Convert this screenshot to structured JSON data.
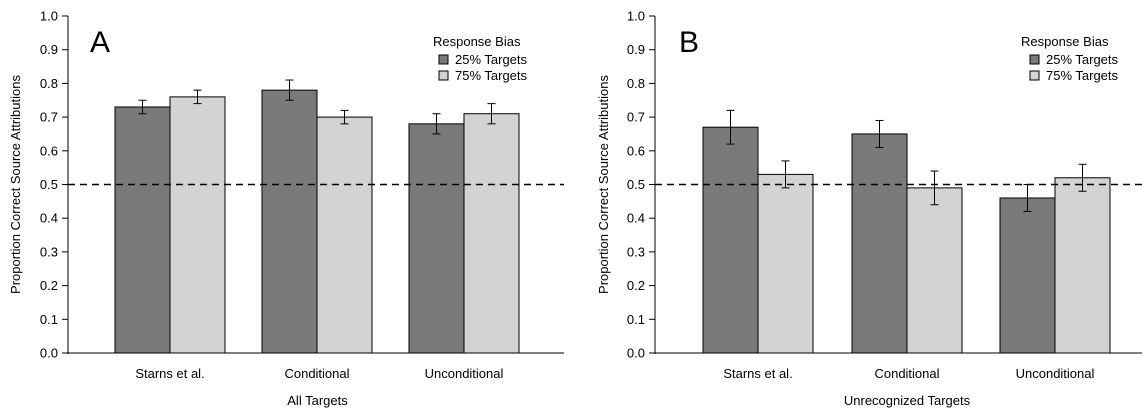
{
  "chart_data": [
    {
      "type": "bar",
      "panel_label": "A",
      "categories": [
        "Starns et al.",
        "Conditional",
        "Unconditional"
      ],
      "xlabel": "All Targets",
      "ylabel": "Proportion Correct Source Attributions",
      "ylim": [
        0,
        1
      ],
      "yticks": [
        "0.0",
        "0.1",
        "0.2",
        "0.3",
        "0.4",
        "0.5",
        "0.6",
        "0.7",
        "0.8",
        "0.9",
        "1.0"
      ],
      "reference_line": 0.5,
      "legend": {
        "title": "Response Bias",
        "position": "top-right"
      },
      "series": [
        {
          "name": "25% Targets",
          "color": "#7a7a7a",
          "values": [
            0.73,
            0.78,
            0.68
          ],
          "error": [
            0.02,
            0.03,
            0.03
          ]
        },
        {
          "name": "75% Targets",
          "color": "#d3d3d3",
          "values": [
            0.76,
            0.7,
            0.71
          ],
          "error": [
            0.02,
            0.02,
            0.03
          ]
        }
      ]
    },
    {
      "type": "bar",
      "panel_label": "B",
      "categories": [
        "Starns et al.",
        "Conditional",
        "Unconditional"
      ],
      "xlabel": "Unrecognized Targets",
      "ylabel": "Proportion Correct Source Attributions",
      "ylim": [
        0,
        1
      ],
      "yticks": [
        "0.0",
        "0.1",
        "0.2",
        "0.3",
        "0.4",
        "0.5",
        "0.6",
        "0.7",
        "0.8",
        "0.9",
        "1.0"
      ],
      "reference_line": 0.5,
      "legend": {
        "title": "Response Bias",
        "position": "top-right"
      },
      "series": [
        {
          "name": "25% Targets",
          "color": "#7a7a7a",
          "values": [
            0.67,
            0.65,
            0.46
          ],
          "error": [
            0.05,
            0.04,
            0.04
          ]
        },
        {
          "name": "75% Targets",
          "color": "#d3d3d3",
          "values": [
            0.53,
            0.49,
            0.52
          ],
          "error": [
            0.04,
            0.05,
            0.04
          ]
        }
      ]
    }
  ]
}
